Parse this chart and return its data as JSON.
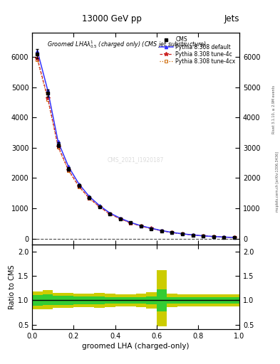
{
  "title_top": "13000 GeV pp",
  "title_right": "Jets",
  "xlabel": "groomed LHA (charged-only)",
  "ylabel_ratio": "Ratio to CMS",
  "watermark": "CMS_2021_I1920187",
  "right_label1": "Rivet 3.1.10, ≥ 2.9M events",
  "right_label2": "mcplots.cern.ch [arXiv:1306.3436]",
  "x_data": [
    0.025,
    0.075,
    0.125,
    0.175,
    0.225,
    0.275,
    0.325,
    0.375,
    0.425,
    0.475,
    0.525,
    0.575,
    0.625,
    0.675,
    0.725,
    0.775,
    0.825,
    0.875,
    0.925,
    0.975
  ],
  "cms_y": [
    6100,
    4800,
    3100,
    2300,
    1750,
    1350,
    1050,
    820,
    660,
    520,
    410,
    330,
    255,
    198,
    153,
    116,
    88,
    65,
    47,
    34
  ],
  "cms_yerr": [
    150,
    120,
    85,
    65,
    50,
    40,
    30,
    25,
    20,
    16,
    13,
    10,
    8,
    6,
    5,
    4,
    3,
    2.5,
    2,
    1.5
  ],
  "pythia_default_y": [
    6200,
    4900,
    3200,
    2380,
    1810,
    1395,
    1090,
    845,
    675,
    535,
    425,
    342,
    265,
    205,
    159,
    121,
    92,
    69,
    51,
    37
  ],
  "pythia_4c_y": [
    5950,
    4650,
    3050,
    2270,
    1730,
    1340,
    1050,
    815,
    655,
    518,
    413,
    332,
    258,
    200,
    155,
    118,
    90,
    67,
    49,
    36
  ],
  "pythia_4cx_y": [
    5900,
    4600,
    3010,
    2245,
    1712,
    1325,
    1040,
    807,
    648,
    512,
    408,
    328,
    255,
    197,
    153,
    117,
    89,
    66,
    48,
    35
  ],
  "green_band_lo": [
    0.89,
    0.91,
    0.91,
    0.91,
    0.92,
    0.92,
    0.92,
    0.93,
    0.93,
    0.93,
    0.93,
    0.92,
    0.77,
    0.93,
    0.93,
    0.93,
    0.94,
    0.94,
    0.93,
    0.93
  ],
  "green_band_hi": [
    1.11,
    1.12,
    1.09,
    1.09,
    1.08,
    1.08,
    1.08,
    1.07,
    1.07,
    1.07,
    1.07,
    1.08,
    1.23,
    1.07,
    1.07,
    1.07,
    1.06,
    1.06,
    1.07,
    1.07
  ],
  "yellow_band_lo": [
    0.81,
    0.82,
    0.84,
    0.85,
    0.86,
    0.86,
    0.85,
    0.86,
    0.87,
    0.87,
    0.86,
    0.83,
    0.47,
    0.86,
    0.87,
    0.87,
    0.88,
    0.88,
    0.87,
    0.87
  ],
  "yellow_band_hi": [
    1.19,
    1.21,
    1.16,
    1.15,
    1.14,
    1.14,
    1.15,
    1.14,
    1.13,
    1.13,
    1.14,
    1.17,
    1.63,
    1.14,
    1.13,
    1.13,
    1.12,
    1.12,
    1.13,
    1.13
  ],
  "color_default": "#3333ff",
  "color_4c": "#cc2222",
  "color_4cx": "#cc6600",
  "color_cms": "#000000",
  "color_green": "#33cc33",
  "color_yellow": "#cccc00",
  "ylim_main": [
    -200,
    6800
  ],
  "ylim_ratio": [
    0.4,
    2.15
  ],
  "yticks_main": [
    0,
    1000,
    2000,
    3000,
    4000,
    5000,
    6000
  ],
  "yticks_ratio": [
    0.5,
    1.0,
    1.5,
    2.0
  ],
  "xlim": [
    0,
    1
  ],
  "bin_width": 0.05
}
